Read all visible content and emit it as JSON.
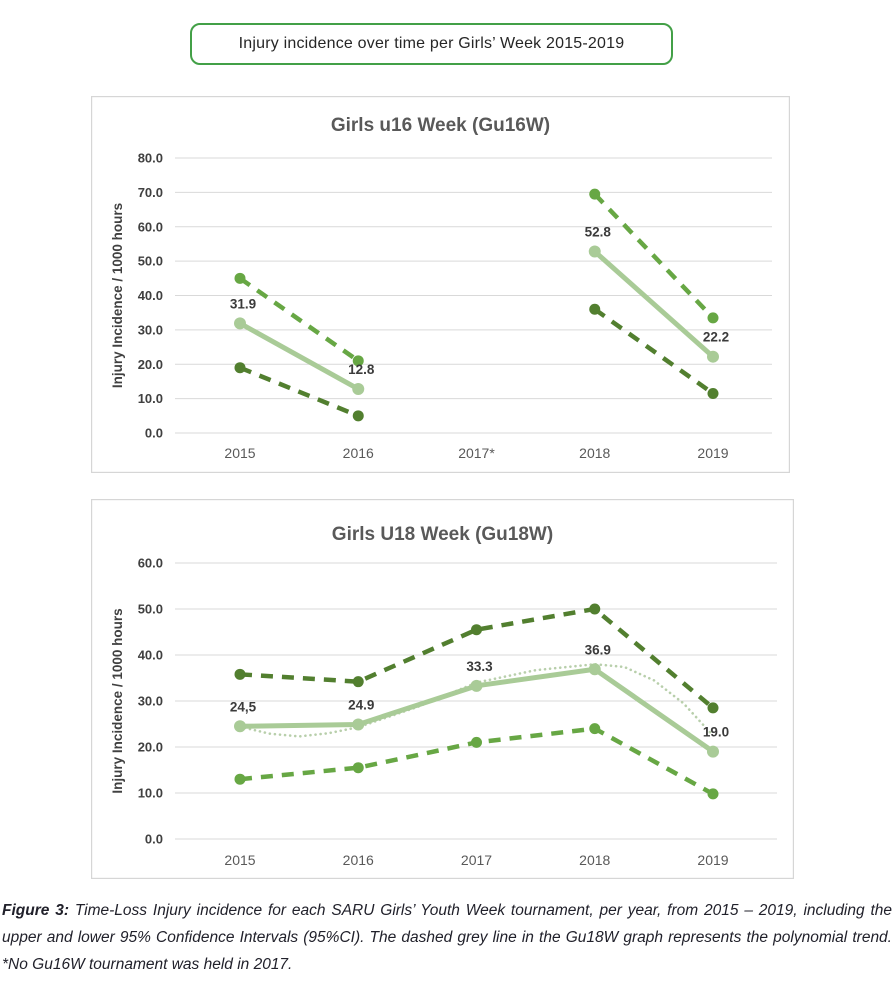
{
  "header": {
    "title": "Injury incidence over time per Girls’ Week 2015-2019"
  },
  "caption": {
    "label": "Figure 3:",
    "text": " Time-Loss Injury incidence for each SARU Girls’ Youth Week tournament, per year, from 2015 – 2019, including the upper and lower 95% Confidence Intervals (95%CI). The dashed grey line in the Gu18W graph represents the polynomial trend. *No Gu16W tournament was held in 2017."
  },
  "colors": {
    "title_box_border": "#43a047",
    "bright_green": "#67a744",
    "dark_green": "#527f2f",
    "light_green": "#a9cb97",
    "trend_green": "#b8cfab",
    "grid_gray": "#d9d9d9",
    "panel_border": "#d6d6d6"
  },
  "chart_data": [
    {
      "type": "line",
      "title": "Girls u16 Week (Gu16W)",
      "ylabel": "Injury Incidence / 1000 hours",
      "xlabel": "",
      "categories": [
        "2015",
        "2016",
        "2017*",
        "2018",
        "2019"
      ],
      "ylim": [
        0,
        80
      ],
      "ytick_step": 10,
      "grid": true,
      "legend": "none",
      "note": "gap at 2017* - no tournament held",
      "series": [
        {
          "name": "Upper 95% CI",
          "style": "dashed",
          "color": "#67a744",
          "values": [
            45.0,
            21.0,
            null,
            69.5,
            33.5
          ]
        },
        {
          "name": "Injury incidence",
          "style": "solid",
          "color": "#a9cb97",
          "values": [
            31.9,
            12.8,
            null,
            52.8,
            22.2
          ],
          "labels": [
            "31.9",
            "12.8",
            null,
            "52.8",
            "22.2"
          ]
        },
        {
          "name": "Lower 95% CI",
          "style": "dashed",
          "color": "#527f2f",
          "values": [
            19.0,
            5.0,
            null,
            36.0,
            11.5
          ]
        }
      ]
    },
    {
      "type": "line",
      "title": "Girls U18 Week (Gu18W)",
      "ylabel": "Injury Incidence / 1000 hours",
      "xlabel": "",
      "categories": [
        "2015",
        "2016",
        "2017",
        "2018",
        "2019"
      ],
      "ylim": [
        0,
        60
      ],
      "ytick_step": 10,
      "grid": true,
      "legend": "none",
      "series": [
        {
          "name": "Upper 95% CI",
          "style": "dashed",
          "color": "#527f2f",
          "values": [
            35.8,
            34.2,
            45.5,
            50.0,
            28.5
          ]
        },
        {
          "name": "Lower 95% CI",
          "style": "dashed",
          "color": "#67a744",
          "values": [
            13.0,
            15.5,
            21.0,
            24.0,
            9.8
          ]
        },
        {
          "name": "Polynomial trend",
          "style": "dotted",
          "color": "#b8cfab",
          "no_markers": true,
          "x": [
            0,
            0.25,
            0.5,
            0.75,
            1,
            1.5,
            2,
            2.5,
            3,
            3.25,
            3.5,
            3.75,
            4
          ],
          "values": [
            24.4,
            22.9,
            22.3,
            23.0,
            24.3,
            28.7,
            34.0,
            36.7,
            38.0,
            37.4,
            34.5,
            29.5,
            22.5
          ]
        },
        {
          "name": "Injury incidence",
          "style": "solid",
          "color": "#a9cb97",
          "values": [
            24.5,
            24.9,
            33.3,
            36.9,
            19.0
          ],
          "labels": [
            "24,5",
            "24.9",
            "33.3",
            "36.9",
            "19.0"
          ]
        }
      ]
    }
  ]
}
